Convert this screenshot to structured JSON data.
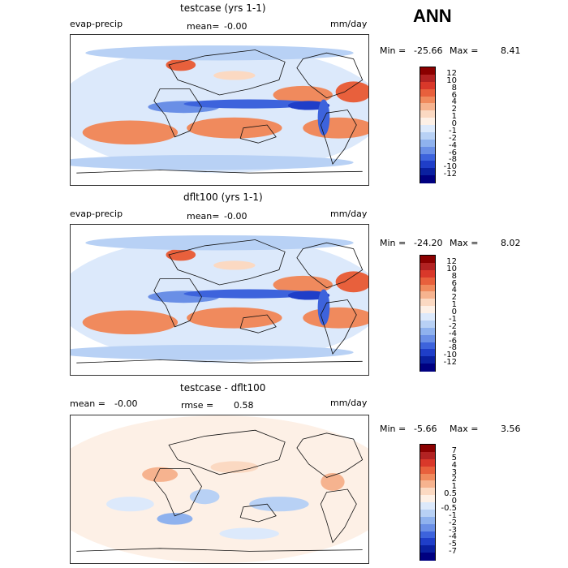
{
  "season": "ANN",
  "panels": [
    {
      "title": "testcase (yrs 1-1)",
      "left_label": "evap-precip",
      "mean_label": "mean=",
      "mean_value": "-0.00",
      "units": "mm/day",
      "min_label": "Min =",
      "min_value": "-25.66",
      "max_label": "Max =",
      "max_value": "8.41"
    },
    {
      "title": "dflt100 (yrs 1-1)",
      "left_label": "evap-precip",
      "mean_label": "mean=",
      "mean_value": "-0.00",
      "units": "mm/day",
      "min_label": "Min =",
      "min_value": "-24.20",
      "max_label": "Max =",
      "max_value": "8.02"
    },
    {
      "title": "testcase - dflt100",
      "mean_label": "mean =",
      "mean_value": "-0.00",
      "rmse_label": "rmse =",
      "rmse_value": "0.58",
      "units": "mm/day",
      "min_label": "Min =",
      "min_value": "-5.66",
      "max_label": "Max =",
      "max_value": "3.56"
    }
  ],
  "chart_data": [
    {
      "type": "heatmap",
      "title": "testcase (yrs 1-1)",
      "variable": "evap-precip",
      "units": "mm/day",
      "mean": -0.0,
      "min": -25.66,
      "max": 8.41,
      "colorbar": {
        "levels": [
          "12",
          "10",
          "8",
          "6",
          "4",
          "2",
          "1",
          "0",
          "-1",
          "-2",
          "-4",
          "-6",
          "-8",
          "-10",
          "-12"
        ],
        "colors": [
          "#8b0000",
          "#b22222",
          "#d9382a",
          "#e8603c",
          "#f08a5d",
          "#f6b38f",
          "#fbd9c2",
          "#fdf0e6",
          "#dce9fb",
          "#b8d1f5",
          "#8fb2ee",
          "#6a8fe6",
          "#3d63dc",
          "#1f3ec8",
          "#0a20a0",
          "#000080"
        ]
      }
    },
    {
      "type": "heatmap",
      "title": "dflt100 (yrs 1-1)",
      "variable": "evap-precip",
      "units": "mm/day",
      "mean": -0.0,
      "min": -24.2,
      "max": 8.02,
      "colorbar": {
        "levels": [
          "12",
          "10",
          "8",
          "6",
          "4",
          "2",
          "1",
          "0",
          "-1",
          "-2",
          "-4",
          "-6",
          "-8",
          "-10",
          "-12"
        ],
        "colors": [
          "#8b0000",
          "#b22222",
          "#d9382a",
          "#e8603c",
          "#f08a5d",
          "#f6b38f",
          "#fbd9c2",
          "#fdf0e6",
          "#dce9fb",
          "#b8d1f5",
          "#8fb2ee",
          "#6a8fe6",
          "#3d63dc",
          "#1f3ec8",
          "#0a20a0",
          "#000080"
        ]
      }
    },
    {
      "type": "heatmap",
      "title": "testcase - dflt100",
      "units": "mm/day",
      "mean": -0.0,
      "rmse": 0.58,
      "min": -5.66,
      "max": 3.56,
      "colorbar": {
        "levels": [
          "7",
          "5",
          "4",
          "3",
          "2",
          "1",
          "0.5",
          "0",
          "-0.5",
          "-1",
          "-2",
          "-3",
          "-4",
          "-5",
          "-7"
        ],
        "colors": [
          "#8b0000",
          "#b22222",
          "#d9382a",
          "#e8603c",
          "#f08a5d",
          "#f6b38f",
          "#fbd9c2",
          "#fdf0e6",
          "#dce9fb",
          "#b8d1f5",
          "#8fb2ee",
          "#6a8fe6",
          "#3d63dc",
          "#1f3ec8",
          "#0a20a0",
          "#000080"
        ]
      }
    }
  ]
}
